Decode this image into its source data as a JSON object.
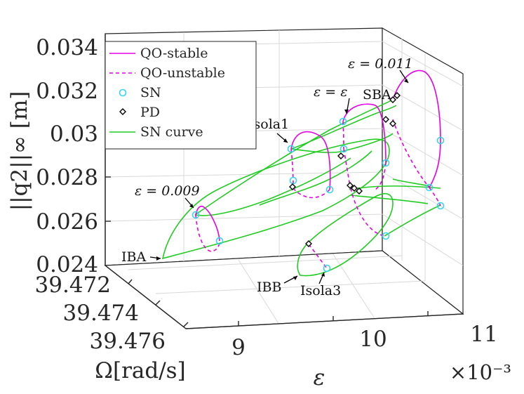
{
  "chart_data": {
    "type": "line",
    "title": "",
    "xlabel": "ε",
    "ylabel": "Ω[rad/s]",
    "zlabel": "||q2||∞ [m]",
    "x_exponent": "×10⁻³",
    "x_ticks": [
      "9",
      "10",
      "11"
    ],
    "y_ticks": [
      "39.472",
      "39.474",
      "39.476"
    ],
    "z_ticks": [
      "0.034",
      "0.032",
      "0.03",
      "0.028",
      "0.026",
      "0.024"
    ],
    "xlim": [
      0.0085,
      0.011
    ],
    "ylim": [
      39.471,
      39.477
    ],
    "zlim": [
      0.024,
      0.034
    ],
    "grid": true,
    "legend_position": "top-left",
    "legend": [
      {
        "label": "QO-stable",
        "color": "#e600e6",
        "style": "solid"
      },
      {
        "label": "QO-unstable",
        "color": "#e600e6",
        "style": "dashed"
      },
      {
        "label": "SN",
        "color": "#33d6f0",
        "style": "marker-circle"
      },
      {
        "label": "PD",
        "color": "#000000",
        "style": "marker-diamond"
      },
      {
        "label": "SN curve",
        "color": "#22cc22",
        "style": "solid"
      }
    ],
    "annotations": [
      "ε = 0.011",
      "ε = ε",
      "SBA",
      "Isola1",
      "ε = 0.009",
      "IBA",
      "IBB",
      "Isola3"
    ],
    "series": [
      {
        "name": "QO-stable",
        "isolas": [
          {
            "epsilon": 0.009,
            "amplitude_range": [
              0.0257,
              0.0268
            ]
          },
          {
            "epsilon": 0.0094,
            "amplitude_range": [
              0.0276,
              0.0294
            ]
          },
          {
            "epsilon": 0.0102,
            "amplitude_range": [
              0.0281,
              0.03
            ]
          },
          {
            "epsilon": 0.011,
            "amplitude_range": [
              0.0275,
              0.0314
            ]
          }
        ]
      },
      {
        "name": "QO-unstable",
        "isolas": [
          {
            "epsilon": 0.009,
            "amplitude_range": [
              0.0255,
              0.0262
            ]
          },
          {
            "epsilon": 0.0094,
            "amplitude_range": [
              0.027,
              0.029
            ]
          },
          {
            "epsilon": 0.0096,
            "amplitude_range": [
              0.0248,
              0.0253
            ]
          },
          {
            "epsilon": 0.0102,
            "amplitude_range": [
              0.0266,
              0.0299
            ]
          },
          {
            "epsilon": 0.011,
            "amplitude_range": [
              0.0276,
              0.03
            ]
          }
        ]
      }
    ]
  }
}
